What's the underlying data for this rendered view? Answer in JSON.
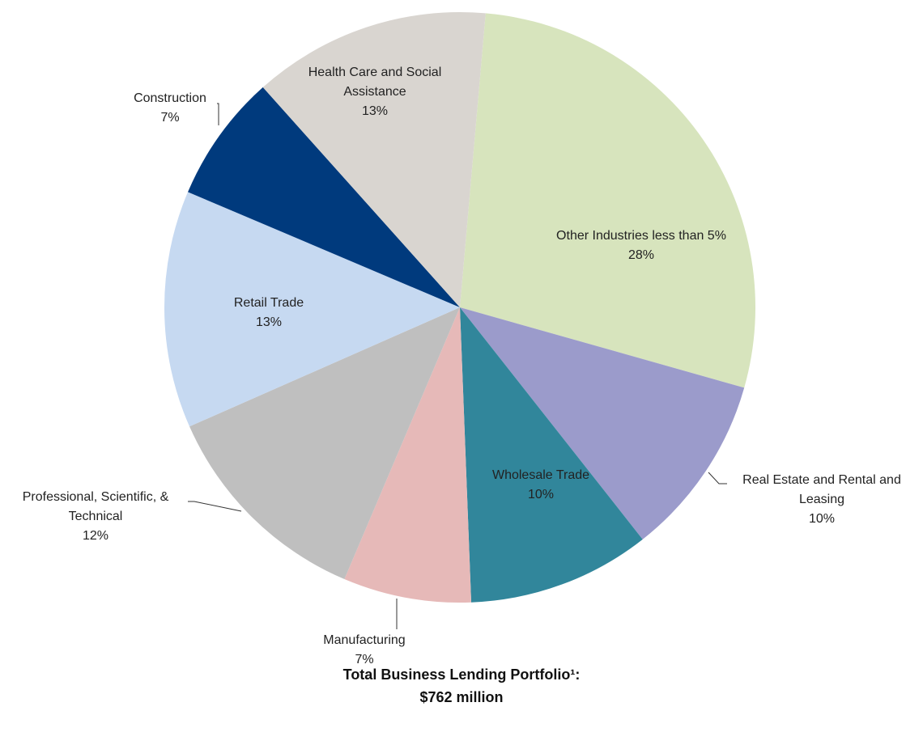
{
  "chart_data": {
    "type": "pie",
    "title": "Total Business Lending Portfolio¹:",
    "subtitle": "$762 million",
    "categories": [
      "Other Industries less than 5%",
      "Real Estate and Rental and Leasing",
      "Wholesale Trade",
      "Manufacturing",
      "Professional, Scientific, & Technical",
      "Retail Trade",
      "Construction",
      "Health Care and Social Assistance"
    ],
    "values": [
      28,
      10,
      10,
      7,
      12,
      13,
      7,
      13
    ],
    "value_labels": [
      "28%",
      "10%",
      "10%",
      "7%",
      "12%",
      "13%",
      "7%",
      "13%"
    ],
    "colors": [
      "#d7e4bd",
      "#9b9bcb",
      "#31869b",
      "#e6b9b8",
      "#bfbfbf",
      "#c6d9f1",
      "#003a7d",
      "#d9d5d0"
    ]
  }
}
